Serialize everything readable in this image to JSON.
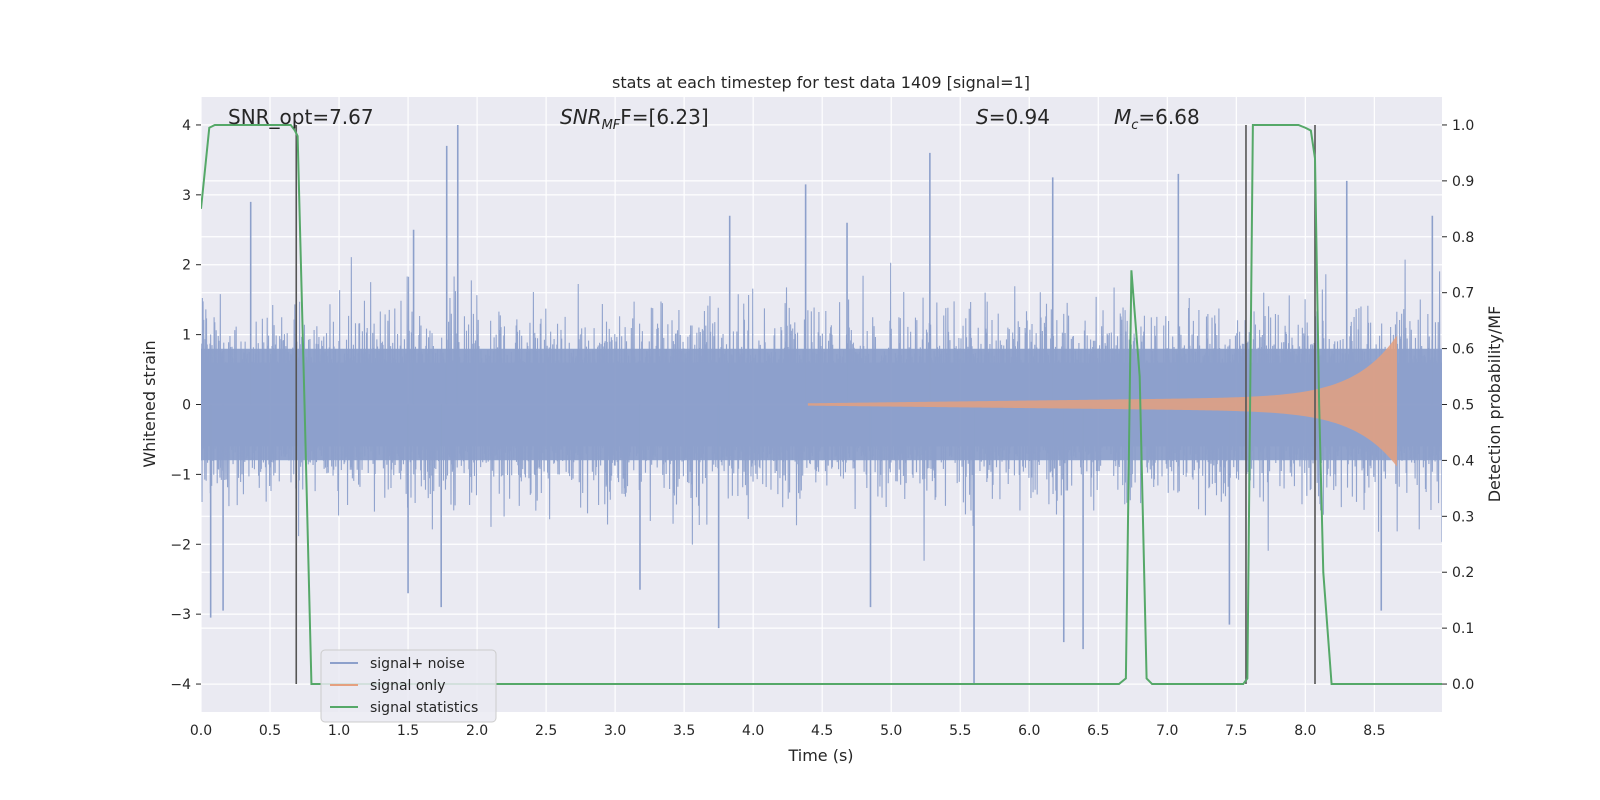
{
  "chart_data": {
    "type": "line",
    "title": "stats at each timestep for test data 1409 [signal=1]",
    "xlabel": "Time (s)",
    "ylabel": "Whitened strain",
    "y2label": "Detection probability/MF",
    "xlim": [
      0.0,
      8.99
    ],
    "ylim": [
      -4.4,
      4.4
    ],
    "y2lim": [
      -0.05,
      1.05
    ],
    "xticks": [
      "0.0",
      "0.5",
      "1.0",
      "1.5",
      "2.0",
      "2.5",
      "3.0",
      "3.5",
      "4.0",
      "4.5",
      "5.0",
      "5.5",
      "6.0",
      "6.5",
      "7.0",
      "7.5",
      "8.0",
      "8.5"
    ],
    "yticks": [
      "4",
      "3",
      "2",
      "1",
      "0",
      "−1",
      "−2",
      "−3",
      "−4"
    ],
    "y2ticks": [
      "1.0",
      "0.9",
      "0.8",
      "0.7",
      "0.6",
      "0.5",
      "0.4",
      "0.3",
      "0.2",
      "0.1",
      "0.0"
    ],
    "grid": true,
    "legend_position": "lower-left",
    "annotations": {
      "snr_opt": "SNR_opt=7.67",
      "snr_mf_prefix": "SNR",
      "snr_mf_sub": "MF",
      "snr_mf_value": "F=[6.23]",
      "s_symbol": "S",
      "s_value": "=0.94",
      "mc_symbol": "M",
      "mc_sub": "c",
      "mc_value": "=6.68"
    },
    "series": [
      {
        "name": "signal+ noise",
        "color": "#8da0cb",
        "description_level": "whitened noise, typical envelope about ±1.6, peaks up to 4.0 and down to −4.0",
        "envelope": 1.6,
        "spikes": [
          {
            "x": 1.86,
            "y": 4.0
          },
          {
            "x": 1.78,
            "y": 3.7
          },
          {
            "x": 5.28,
            "y": 3.6
          },
          {
            "x": 4.38,
            "y": 3.15
          },
          {
            "x": 6.17,
            "y": 3.25
          },
          {
            "x": 7.08,
            "y": 3.3
          },
          {
            "x": 8.3,
            "y": 3.2
          },
          {
            "x": 0.36,
            "y": 2.9
          },
          {
            "x": 1.54,
            "y": 2.5
          },
          {
            "x": 3.83,
            "y": 2.7
          },
          {
            "x": 4.68,
            "y": 2.6
          },
          {
            "x": 8.92,
            "y": 2.7
          },
          {
            "x": 5.6,
            "y": -4.0
          },
          {
            "x": 6.39,
            "y": -3.5
          },
          {
            "x": 6.25,
            "y": -3.4
          },
          {
            "x": 3.75,
            "y": -3.2
          },
          {
            "x": 7.45,
            "y": -3.15
          },
          {
            "x": 0.07,
            "y": -3.05
          },
          {
            "x": 0.16,
            "y": -2.95
          },
          {
            "x": 1.74,
            "y": -2.9
          },
          {
            "x": 1.5,
            "y": -2.7
          },
          {
            "x": 4.85,
            "y": -2.9
          },
          {
            "x": 8.55,
            "y": -2.95
          },
          {
            "x": 3.18,
            "y": -2.65
          }
        ]
      },
      {
        "name": "signal only",
        "color": "#e5a07f",
        "chirp": {
          "start": 4.4,
          "end": 8.66,
          "amp_end": 1.0,
          "amp_mid": 0.15
        }
      },
      {
        "name": "signal statistics",
        "color": "#55a868",
        "axis": "right",
        "x": [
          0.0,
          0.06,
          0.1,
          0.15,
          0.5,
          0.65,
          0.68,
          0.7,
          0.75,
          0.8,
          6.6,
          6.65,
          6.7,
          6.74,
          6.8,
          6.85,
          6.89,
          6.95,
          7.5,
          7.55,
          7.58,
          7.62,
          7.65,
          7.95,
          8.0,
          8.04,
          8.07,
          8.1,
          8.13,
          8.19,
          8.25,
          8.99
        ],
        "y": [
          0.85,
          0.995,
          1.0,
          1.0,
          1.0,
          1.0,
          0.99,
          0.98,
          0.5,
          0.0,
          0.0,
          0.0,
          0.01,
          0.74,
          0.55,
          0.01,
          0.0,
          0.0,
          0.0,
          0.0,
          0.01,
          1.0,
          1.0,
          1.0,
          0.995,
          0.99,
          0.94,
          0.5,
          0.2,
          0.0,
          0.0,
          0.0
        ]
      }
    ],
    "vertical_lines": [
      0.69,
      7.57,
      8.07
    ],
    "vertical_line_color": "#555555"
  }
}
